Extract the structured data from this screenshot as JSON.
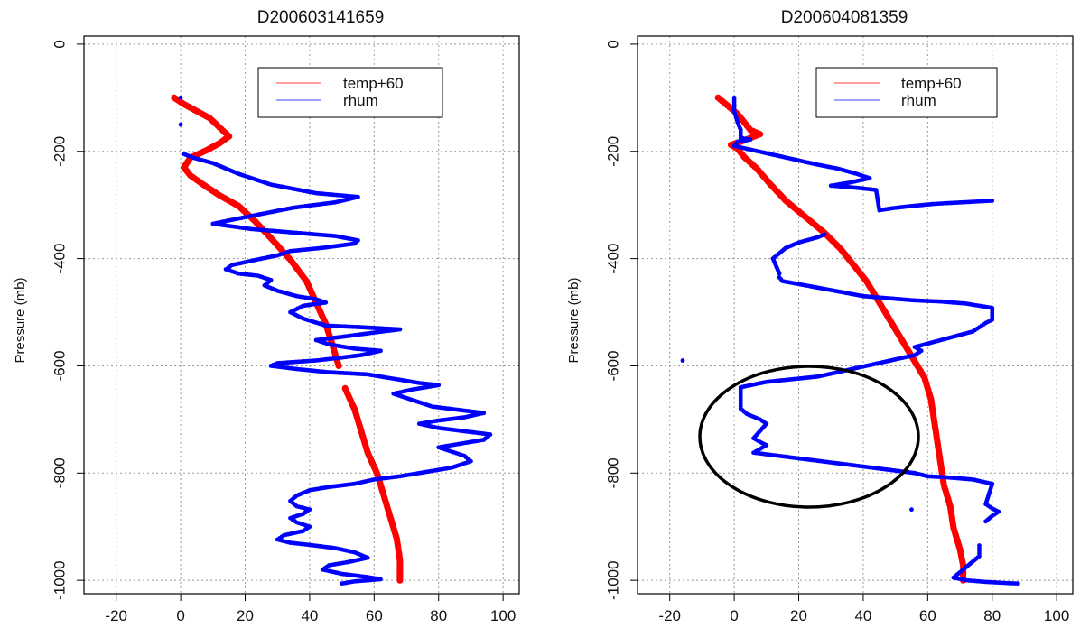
{
  "figure": {
    "colors": {
      "temp": "#ff0000",
      "rhum": "#0000ff",
      "grid": "#9a9a9a",
      "axis": "#000000"
    }
  },
  "chart_data": [
    {
      "type": "scatter",
      "title": "D200603141659",
      "xlabel": "",
      "ylabel": "Pressure (mb)",
      "xlim": [
        -30,
        105
      ],
      "ylim": [
        -1025,
        15
      ],
      "xticks": [
        -20,
        0,
        20,
        40,
        60,
        80,
        100
      ],
      "yticks": [
        0,
        -200,
        -400,
        -600,
        -800,
        -1000
      ],
      "grid": true,
      "legend_position": "top-right",
      "series": [
        {
          "name": "temp+60",
          "color": "#ff0000",
          "points": [
            [
              -2,
              -100
            ],
            [
              1,
              -112
            ],
            [
              5,
              -125
            ],
            [
              9,
              -138
            ],
            [
              12,
              -155
            ],
            [
              15,
              -172
            ],
            [
              12,
              -185
            ],
            [
              8,
              -198
            ],
            [
              3,
              -212
            ],
            [
              1,
              -230
            ],
            [
              3,
              -245
            ],
            [
              7,
              -262
            ],
            [
              12,
              -282
            ],
            [
              18,
              -302
            ],
            [
              23,
              -330
            ],
            [
              28,
              -362
            ],
            [
              34,
              -402
            ],
            [
              39,
              -442
            ],
            [
              42,
              -482
            ],
            [
              45,
              -522
            ],
            [
              47,
              -560
            ],
            [
              49,
              -600
            ],
            [
              51,
              -642
            ],
            [
              54,
              -682
            ],
            [
              56,
              -722
            ],
            [
              58,
              -762
            ],
            [
              61,
              -802
            ],
            [
              63,
              -842
            ],
            [
              65,
              -882
            ],
            [
              67,
              -922
            ],
            [
              68,
              -962
            ],
            [
              68,
              -1000
            ]
          ]
        },
        {
          "name": "rhum",
          "color": "#0000ff",
          "points": [
            [
              0,
              -100
            ],
            [
              0,
              -150
            ],
            [
              1,
              -205
            ],
            [
              4,
              -212
            ],
            [
              10,
              -222
            ],
            [
              18,
              -242
            ],
            [
              28,
              -262
            ],
            [
              42,
              -278
            ],
            [
              55,
              -285
            ],
            [
              48,
              -295
            ],
            [
              35,
              -305
            ],
            [
              24,
              -318
            ],
            [
              14,
              -330
            ],
            [
              10,
              -335
            ],
            [
              22,
              -345
            ],
            [
              36,
              -352
            ],
            [
              48,
              -358
            ],
            [
              55,
              -366
            ],
            [
              54,
              -372
            ],
            [
              44,
              -380
            ],
            [
              34,
              -386
            ],
            [
              30,
              -394
            ],
            [
              22,
              -404
            ],
            [
              16,
              -412
            ],
            [
              14,
              -420
            ],
            [
              18,
              -428
            ],
            [
              24,
              -432
            ],
            [
              28,
              -440
            ],
            [
              26,
              -450
            ],
            [
              30,
              -460
            ],
            [
              36,
              -470
            ],
            [
              42,
              -476
            ],
            [
              45,
              -482
            ],
            [
              38,
              -488
            ],
            [
              34,
              -500
            ],
            [
              38,
              -512
            ],
            [
              45,
              -525
            ],
            [
              56,
              -528
            ],
            [
              68,
              -532
            ],
            [
              60,
              -538
            ],
            [
              50,
              -546
            ],
            [
              42,
              -552
            ],
            [
              46,
              -560
            ],
            [
              54,
              -568
            ],
            [
              62,
              -572
            ],
            [
              56,
              -580
            ],
            [
              48,
              -586
            ],
            [
              42,
              -590
            ],
            [
              30,
              -595
            ],
            [
              28,
              -600
            ],
            [
              36,
              -606
            ],
            [
              46,
              -612
            ],
            [
              58,
              -616
            ],
            [
              66,
              -624
            ],
            [
              74,
              -632
            ],
            [
              80,
              -636
            ],
            [
              72,
              -644
            ],
            [
              66,
              -652
            ],
            [
              72,
              -664
            ],
            [
              78,
              -676
            ],
            [
              86,
              -682
            ],
            [
              94,
              -688
            ],
            [
              88,
              -696
            ],
            [
              80,
              -702
            ],
            [
              74,
              -708
            ],
            [
              80,
              -716
            ],
            [
              88,
              -722
            ],
            [
              96,
              -728
            ],
            [
              94,
              -738
            ],
            [
              86,
              -746
            ],
            [
              80,
              -752
            ],
            [
              84,
              -760
            ],
            [
              88,
              -768
            ],
            [
              90,
              -778
            ],
            [
              84,
              -790
            ],
            [
              74,
              -800
            ],
            [
              68,
              -806
            ],
            [
              60,
              -812
            ],
            [
              54,
              -820
            ],
            [
              46,
              -826
            ],
            [
              40,
              -832
            ],
            [
              36,
              -842
            ],
            [
              34,
              -852
            ],
            [
              36,
              -862
            ],
            [
              40,
              -868
            ],
            [
              38,
              -876
            ],
            [
              34,
              -884
            ],
            [
              36,
              -892
            ],
            [
              40,
              -900
            ],
            [
              38,
              -908
            ],
            [
              32,
              -916
            ],
            [
              30,
              -924
            ],
            [
              34,
              -930
            ],
            [
              40,
              -934
            ],
            [
              48,
              -940
            ],
            [
              54,
              -948
            ],
            [
              58,
              -958
            ],
            [
              52,
              -966
            ],
            [
              46,
              -972
            ],
            [
              44,
              -980
            ],
            [
              50,
              -988
            ],
            [
              58,
              -994
            ],
            [
              62,
              -998
            ],
            [
              54,
              -1002
            ],
            [
              50,
              -1006
            ]
          ]
        }
      ]
    },
    {
      "type": "scatter",
      "title": "D200604081359",
      "xlabel": "",
      "ylabel": "Pressure (mb)",
      "xlim": [
        -30,
        105
      ],
      "ylim": [
        -1025,
        15
      ],
      "xticks": [
        -20,
        0,
        20,
        40,
        60,
        80,
        100
      ],
      "yticks": [
        0,
        -200,
        -400,
        -600,
        -800,
        -1000
      ],
      "grid": true,
      "legend_position": "top-right",
      "series": [
        {
          "name": "temp+60",
          "color": "#ff0000",
          "points": [
            [
              -5,
              -100
            ],
            [
              -2,
              -115
            ],
            [
              1,
              -130
            ],
            [
              3,
              -145
            ],
            [
              5,
              -160
            ],
            [
              8,
              -168
            ],
            [
              5,
              -175
            ],
            [
              2,
              -182
            ],
            [
              -1,
              -188
            ],
            [
              1,
              -195
            ],
            [
              3,
              -210
            ],
            [
              7,
              -232
            ],
            [
              11,
              -260
            ],
            [
              16,
              -292
            ],
            [
              22,
              -322
            ],
            [
              28,
              -352
            ],
            [
              33,
              -382
            ],
            [
              37,
              -412
            ],
            [
              41,
              -442
            ],
            [
              44,
              -472
            ],
            [
              47,
              -502
            ],
            [
              50,
              -532
            ],
            [
              53,
              -562
            ],
            [
              56,
              -592
            ],
            [
              59,
              -622
            ],
            [
              61,
              -662
            ],
            [
              62,
              -702
            ],
            [
              63,
              -742
            ],
            [
              64,
              -782
            ],
            [
              65,
              -822
            ],
            [
              67,
              -862
            ],
            [
              68,
              -902
            ],
            [
              70,
              -942
            ],
            [
              71,
              -972
            ],
            [
              71,
              -1000
            ]
          ]
        },
        {
          "name": "rhum",
          "color": "#0000ff",
          "points": [
            [
              0,
              -100
            ],
            [
              0,
              -125
            ],
            [
              1,
              -145
            ],
            [
              2,
              -160
            ],
            [
              2,
              -175
            ],
            [
              5,
              -178
            ],
            [
              1,
              -182
            ],
            [
              0,
              -190
            ],
            [
              26,
              -225
            ],
            [
              32,
              -232
            ],
            [
              38,
              -242
            ],
            [
              42,
              -250
            ],
            [
              36,
              -258
            ],
            [
              30,
              -264
            ],
            [
              38,
              -268
            ],
            [
              44,
              -272
            ],
            [
              45,
              -310
            ],
            [
              49,
              -306
            ],
            [
              55,
              -302
            ],
            [
              62,
              -298
            ],
            [
              68,
              -296
            ],
            [
              74,
              -294
            ],
            [
              80,
              -292
            ],
            [
              28,
              -355
            ],
            [
              26,
              -360
            ],
            [
              20,
              -370
            ],
            [
              16,
              -380
            ],
            [
              14,
              -390
            ],
            [
              12,
              -400
            ],
            [
              14,
              -428
            ],
            [
              14,
              -435
            ],
            [
              15,
              -442
            ],
            [
              40,
              -470
            ],
            [
              48,
              -474
            ],
            [
              56,
              -478
            ],
            [
              64,
              -480
            ],
            [
              72,
              -484
            ],
            [
              80,
              -492
            ],
            [
              80,
              -514
            ],
            [
              78,
              -520
            ],
            [
              76,
              -528
            ],
            [
              74,
              -536
            ],
            [
              56,
              -565
            ],
            [
              58,
              -572
            ],
            [
              56,
              -580
            ],
            [
              32,
              -612
            ],
            [
              26,
              -620
            ],
            [
              18,
              -625
            ],
            [
              10,
              -630
            ],
            [
              2,
              -640
            ],
            [
              2,
              -680
            ],
            [
              4,
              -690
            ],
            [
              8,
              -700
            ],
            [
              10,
              -708
            ],
            [
              6,
              -735
            ],
            [
              8,
              -742
            ],
            [
              10,
              -748
            ],
            [
              8,
              -755
            ],
            [
              6,
              -762
            ],
            [
              56,
              -800
            ],
            [
              60,
              -806
            ],
            [
              66,
              -808
            ],
            [
              74,
              -812
            ],
            [
              80,
              -820
            ],
            [
              78,
              -858
            ],
            [
              80,
              -866
            ],
            [
              82,
              -872
            ],
            [
              80,
              -880
            ],
            [
              78,
              -890
            ],
            [
              76,
              -935
            ],
            [
              76,
              -945
            ],
            [
              76,
              -955
            ],
            [
              68,
              -995
            ],
            [
              72,
              -1000
            ],
            [
              78,
              -1003
            ],
            [
              84,
              -1005
            ],
            [
              88,
              -1006
            ],
            [
              -16,
              -590
            ],
            [
              55,
              -868
            ]
          ]
        }
      ]
    }
  ]
}
